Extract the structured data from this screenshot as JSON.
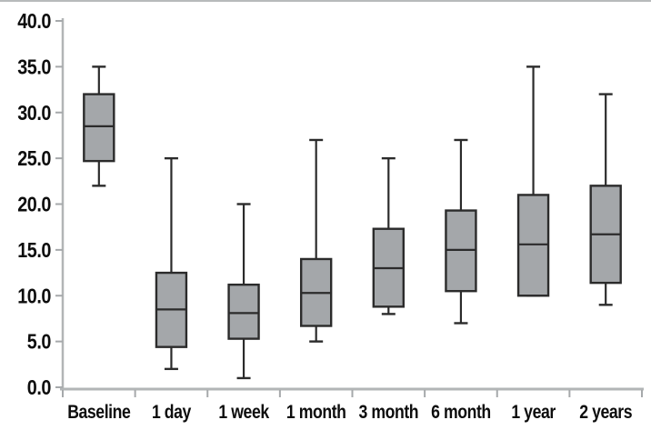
{
  "chart_data": {
    "type": "boxplot",
    "title": "",
    "xlabel": "",
    "ylabel": "",
    "ylim": [
      0,
      40
    ],
    "y_tick_labels": [
      "0.0",
      "5.0",
      "10.0",
      "15.0",
      "20.0",
      "25.0",
      "30.0",
      "35.0",
      "40.0"
    ],
    "categories": [
      "Baseline",
      "1 day",
      "1 week",
      "1 month",
      "3 month",
      "6 month",
      "1 year",
      "2 years"
    ],
    "series": [
      {
        "category": "Baseline",
        "min": 22,
        "q1": 24.7,
        "median": 28.5,
        "q3": 32,
        "max": 35
      },
      {
        "category": "1 day",
        "min": 2,
        "q1": 4.4,
        "median": 8.5,
        "q3": 12.5,
        "max": 25
      },
      {
        "category": "1 week",
        "min": 1,
        "q1": 5.3,
        "median": 8.1,
        "q3": 11.2,
        "max": 20
      },
      {
        "category": "1 month",
        "min": 5,
        "q1": 6.7,
        "median": 10.3,
        "q3": 14,
        "max": 27
      },
      {
        "category": "3 month",
        "min": 8,
        "q1": 8.8,
        "median": 13,
        "q3": 17.3,
        "max": 25
      },
      {
        "category": "6 month",
        "min": 7,
        "q1": 10.5,
        "median": 15,
        "q3": 19.3,
        "max": 27
      },
      {
        "category": "1 year",
        "min": 10,
        "q1": 10,
        "median": 15.6,
        "q3": 21,
        "max": 35
      },
      {
        "category": "2 years",
        "min": 9,
        "q1": 11.4,
        "median": 16.7,
        "q3": 22,
        "max": 32
      }
    ],
    "layout_hints": {
      "grid": "off",
      "legend": "none",
      "box_fill": "#a4a7aa",
      "box_border": "#2b2b2b",
      "whisker_color": "#2b2b2b",
      "median_color": "#2b2b2b",
      "axis_color": "#b2b5b6",
      "tick_color": "#a6a9ab",
      "label_color": "#0d0d0d",
      "background": "#ffffff"
    }
  }
}
